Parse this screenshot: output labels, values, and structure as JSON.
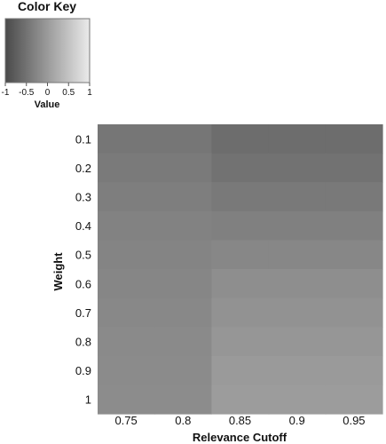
{
  "color_key": {
    "title": "Color Key",
    "label": "Value",
    "ticks": [
      "-1",
      "-0.5",
      "0",
      "0.5",
      "1"
    ],
    "tick_values": [
      -1,
      -0.5,
      0,
      0.5,
      1
    ],
    "range": [
      -1,
      1
    ],
    "low_color": "#4a4a4a",
    "high_color": "#ebebeb"
  },
  "chart_data": {
    "type": "heatmap",
    "title": "",
    "xlabel": "Relevance Cutoff",
    "ylabel": "Weight",
    "x_categories": [
      "0.75",
      "0.8",
      "0.85",
      "0.9",
      "0.95"
    ],
    "x_tick_labels": [
      "0.75",
      "0.8",
      "0.85",
      "0.9",
      "0.95"
    ],
    "y_categories": [
      "0.1",
      "0.2",
      "0.3",
      "0.4",
      "0.5",
      "0.6",
      "0.7",
      "0.8",
      "0.9",
      "1"
    ],
    "y_tick_labels": [
      "0.1",
      "0.2",
      "0.3",
      "0.4",
      "0.5",
      "0.6",
      "0.7",
      "0.8",
      "0.9",
      "1"
    ],
    "values": [
      [
        -0.45,
        -0.45,
        -0.57,
        -0.57,
        -0.57
      ],
      [
        -0.4,
        -0.4,
        -0.5,
        -0.5,
        -0.5
      ],
      [
        -0.35,
        -0.35,
        -0.42,
        -0.42,
        -0.42
      ],
      [
        -0.31,
        -0.31,
        -0.33,
        -0.33,
        -0.33
      ],
      [
        -0.28,
        -0.28,
        -0.24,
        -0.24,
        -0.24
      ],
      [
        -0.25,
        -0.25,
        -0.16,
        -0.16,
        -0.16
      ],
      [
        -0.23,
        -0.23,
        -0.1,
        -0.1,
        -0.1
      ],
      [
        -0.21,
        -0.21,
        -0.05,
        -0.05,
        -0.05
      ],
      [
        -0.19,
        -0.19,
        -0.01,
        -0.01,
        -0.01
      ],
      [
        -0.18,
        -0.18,
        0.02,
        0.02,
        0.02
      ]
    ],
    "value_range": [
      -1,
      1
    ],
    "legend": "top-left",
    "grid": false
  }
}
